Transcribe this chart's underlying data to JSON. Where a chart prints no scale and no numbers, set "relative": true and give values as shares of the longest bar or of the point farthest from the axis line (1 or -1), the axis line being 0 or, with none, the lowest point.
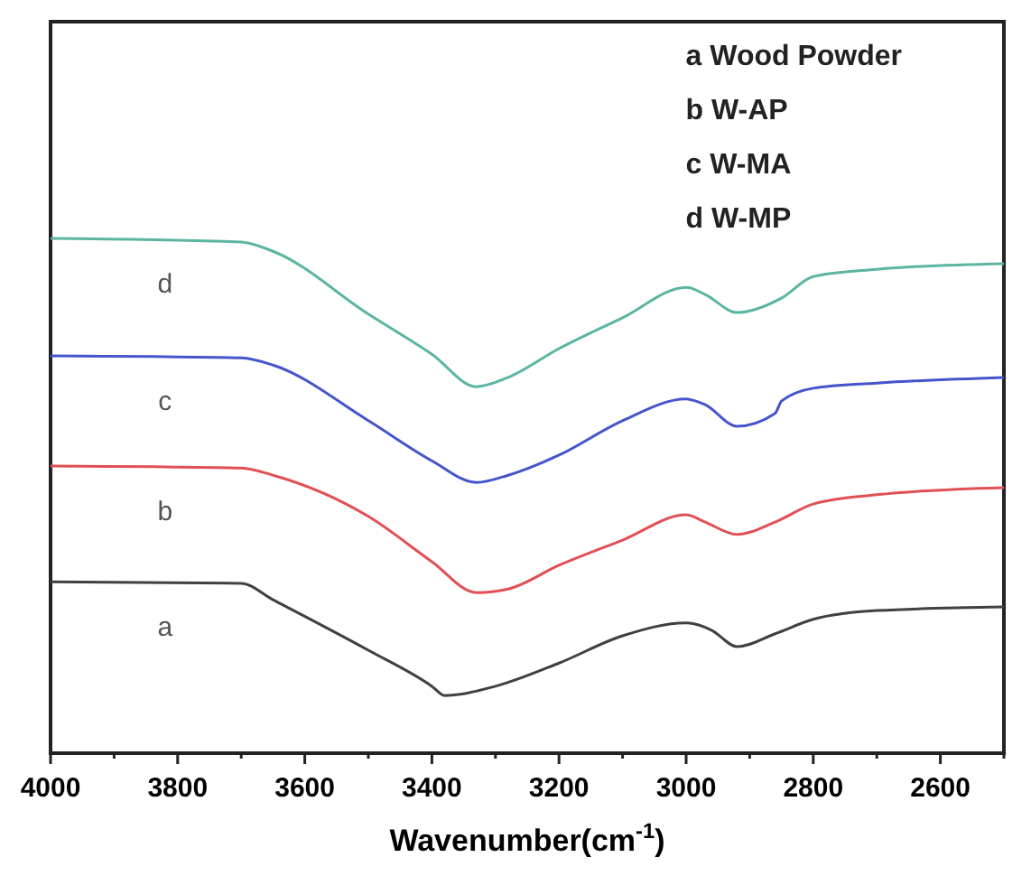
{
  "chart_data": {
    "type": "line",
    "xlabel": "Wavenumber(cm$^{-1}$)",
    "relative": true,
    "grid": false,
    "annotations": [
      "a Wood Powder",
      "b W-AP",
      "c W-MA",
      "d W-MP"
    ],
    "xlim": [
      4000,
      2500
    ],
    "xticks": [
      4000,
      {
        "value": 3900,
        "label": null
      },
      3800,
      {
        "value": 3700,
        "label": null
      },
      3600,
      {
        "value": 3500,
        "label": null
      },
      3400,
      {
        "value": 3300,
        "label": null
      },
      3200,
      {
        "value": 3100,
        "label": null
      },
      3000,
      {
        "value": 2900,
        "label": null
      },
      2800,
      {
        "value": 2700,
        "label": null
      },
      2600,
      {
        "value": 2500,
        "label": null
      }
    ],
    "series": [
      {
        "name": "a",
        "color": "#404040",
        "x": [
          4000,
          3700,
          3650,
          3500,
          3400,
          3380,
          3300,
          3200,
          3100,
          3000,
          2960,
          2920,
          2860,
          2800,
          2700,
          2500
        ],
        "values": [
          0.333,
          0.33,
          0.298,
          0.2,
          0.13,
          0.112,
          0.13,
          0.175,
          0.228,
          0.253,
          0.239,
          0.207,
          0.232,
          0.26,
          0.277,
          0.284
        ]
      },
      {
        "name": "b",
        "color": "#e05055",
        "x": [
          4000,
          3700,
          3650,
          3500,
          3400,
          3330,
          3280,
          3200,
          3100,
          3000,
          2970,
          2920,
          2860,
          2800,
          2700,
          2500
        ],
        "values": [
          0.558,
          0.554,
          0.54,
          0.46,
          0.372,
          0.312,
          0.319,
          0.365,
          0.414,
          0.463,
          0.449,
          0.425,
          0.449,
          0.484,
          0.502,
          0.516
        ]
      },
      {
        "name": "c",
        "color": "#4455cc",
        "x": [
          4000,
          3700,
          3650,
          3500,
          3400,
          3330,
          3280,
          3200,
          3100,
          3000,
          2970,
          2920,
          2860,
          2850,
          2800,
          2700,
          2500
        ],
        "values": [
          0.772,
          0.768,
          0.754,
          0.646,
          0.568,
          0.526,
          0.54,
          0.579,
          0.646,
          0.688,
          0.677,
          0.635,
          0.66,
          0.684,
          0.709,
          0.719,
          0.73
        ]
      },
      {
        "name": "d",
        "color": "#5bb5a2",
        "x": [
          4000,
          3700,
          3650,
          3500,
          3400,
          3330,
          3280,
          3200,
          3100,
          3000,
          2970,
          2920,
          2850,
          2800,
          2700,
          2500
        ],
        "values": [
          1,
          0.993,
          0.975,
          0.853,
          0.775,
          0.712,
          0.73,
          0.786,
          0.846,
          0.905,
          0.891,
          0.856,
          0.884,
          0.926,
          0.94,
          0.951
        ]
      }
    ]
  }
}
